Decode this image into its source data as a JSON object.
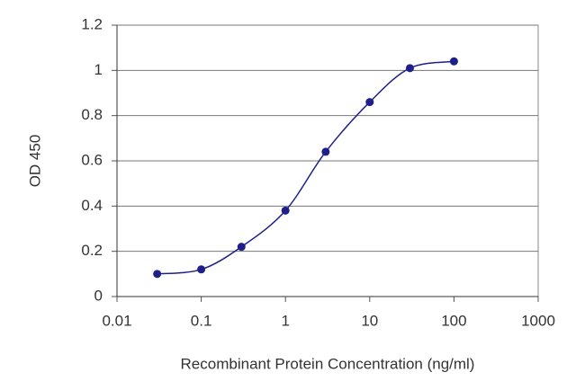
{
  "chart_data": {
    "type": "line",
    "x_label": "Recombinant Protein Concentration (ng/ml)",
    "y_label": "OD 450",
    "x": [
      0.03,
      0.1,
      0.3,
      1,
      3,
      10,
      30,
      100
    ],
    "values": [
      0.1,
      0.12,
      0.22,
      0.38,
      0.64,
      0.86,
      1.01,
      1.04
    ],
    "color": "#1f1f8a",
    "xlim": [
      0.01,
      1000
    ],
    "xticks": [
      0.01,
      0.1,
      1,
      10,
      100,
      1000
    ],
    "xlog": true,
    "ylim": [
      0,
      1.2
    ],
    "yticks": [
      0,
      0.2,
      0.4,
      0.6,
      0.8,
      1,
      1.2
    ],
    "grid": true
  }
}
